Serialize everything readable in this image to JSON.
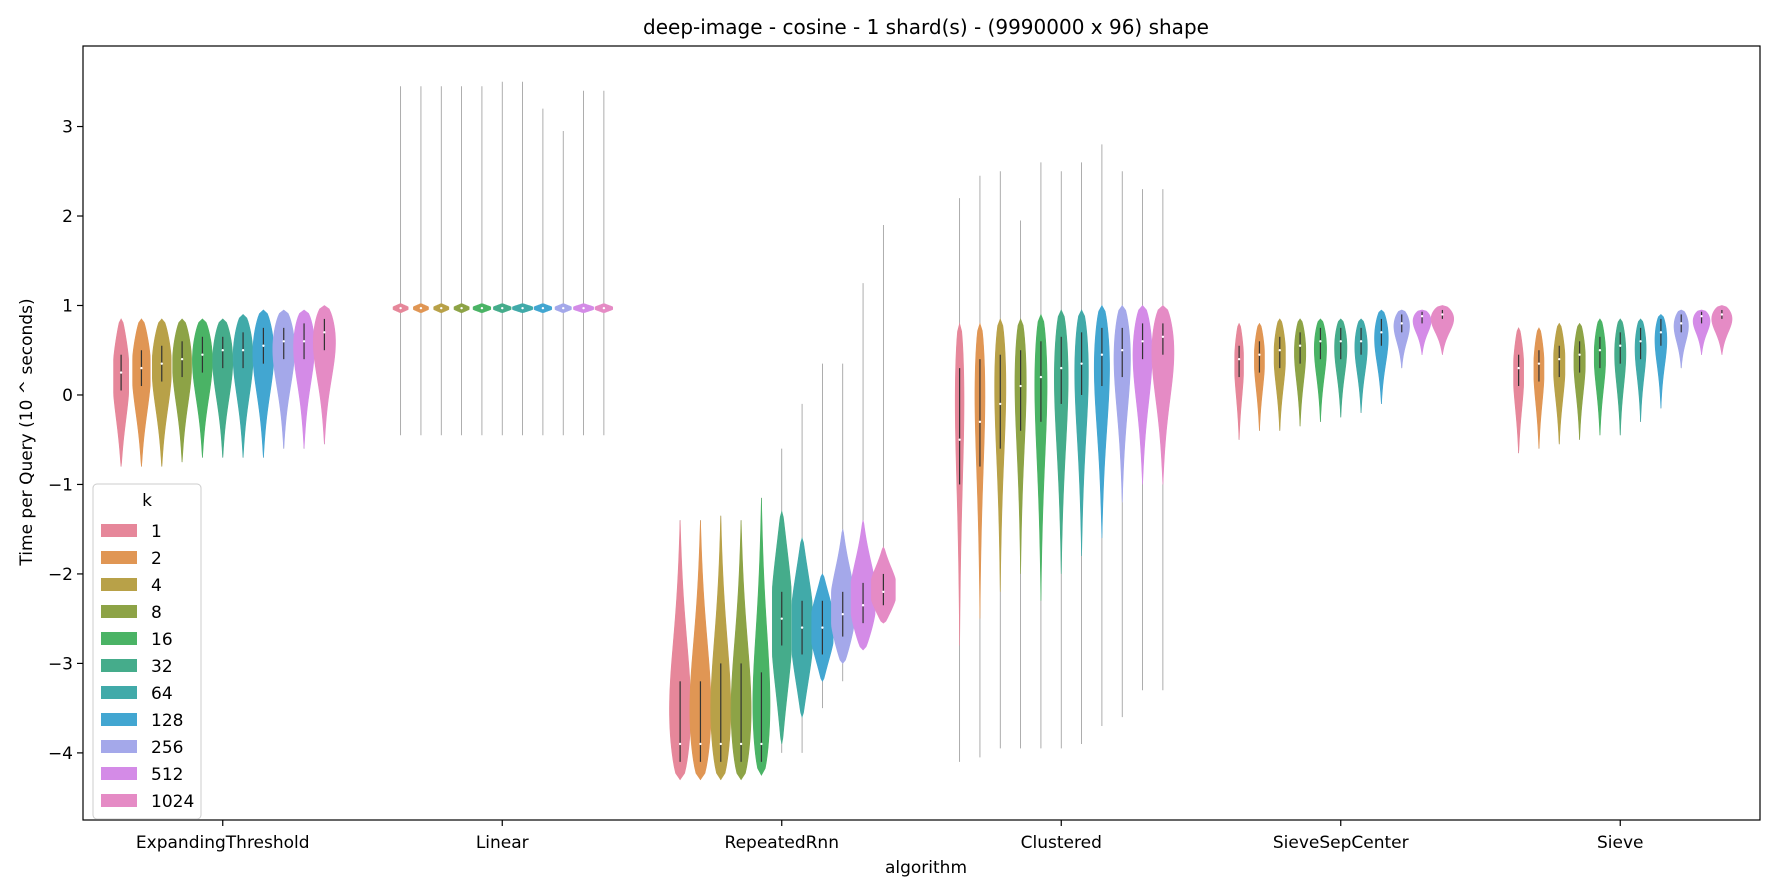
{
  "chart_data": {
    "type": "violin",
    "title": "deep-image - cosine - 1 shard(s) - (9990000 x 96) shape",
    "xlabel": "algorithm",
    "ylabel": "Time per Query (10 ^ seconds)",
    "ylim": [
      -4.75,
      3.9
    ],
    "yticks": [
      3,
      2,
      1,
      0,
      -1,
      -2,
      -3,
      -4
    ],
    "ytick_labels": [
      "3",
      "2",
      "1",
      "0",
      "−1",
      "−2",
      "−3",
      "−4"
    ],
    "grid": false,
    "legend": {
      "title": "k",
      "placement": "lower-left"
    },
    "categories": [
      "ExpandingThreshold",
      "Linear",
      "RepeatedRnn",
      "Clustered",
      "SieveSepCenter",
      "Sieve"
    ],
    "series": [
      {
        "name": "1",
        "color": "#e6879a",
        "values": [
          {
            "min": -0.8,
            "max": 0.85,
            "q1": 0.05,
            "median": 0.25,
            "q3": 0.45,
            "mode": 0.3,
            "width": 0.6
          },
          {
            "min": -0.45,
            "max": 3.45,
            "q1": 0.96,
            "median": 0.97,
            "q3": 0.98,
            "mode": 0.97,
            "width": 0.6,
            "body": [
              0.92,
              1.02
            ]
          },
          {
            "min": -4.3,
            "max": -1.4,
            "q1": -4.1,
            "median": -3.9,
            "q3": -3.2,
            "mode": -3.9,
            "width": 0.9
          },
          {
            "min": -4.1,
            "max": 2.2,
            "q1": -1.0,
            "median": -0.5,
            "q3": 0.3,
            "mode": 0.5,
            "width": 0.4,
            "body": [
              -2.8,
              0.8
            ]
          },
          {
            "min": -0.5,
            "max": 0.8,
            "q1": 0.2,
            "median": 0.4,
            "q3": 0.55,
            "mode": 0.45,
            "width": 0.35
          },
          {
            "min": -0.65,
            "max": 0.75,
            "q1": 0.1,
            "median": 0.3,
            "q3": 0.45,
            "mode": 0.35,
            "width": 0.4
          }
        ]
      },
      {
        "name": "2",
        "color": "#e09654",
        "values": [
          {
            "min": -0.8,
            "max": 0.85,
            "q1": 0.1,
            "median": 0.3,
            "q3": 0.5,
            "mode": 0.4,
            "width": 0.7
          },
          {
            "min": -0.45,
            "max": 3.45,
            "q1": 0.96,
            "median": 0.97,
            "q3": 0.98,
            "mode": 0.97,
            "width": 0.6,
            "body": [
              0.92,
              1.02
            ]
          },
          {
            "min": -4.3,
            "max": -1.4,
            "q1": -4.1,
            "median": -3.9,
            "q3": -3.2,
            "mode": -3.9,
            "width": 0.9
          },
          {
            "min": -4.05,
            "max": 2.45,
            "q1": -0.8,
            "median": -0.3,
            "q3": 0.4,
            "mode": 0.5,
            "width": 0.45,
            "body": [
              -2.5,
              0.8
            ]
          },
          {
            "min": -0.4,
            "max": 0.8,
            "q1": 0.25,
            "median": 0.45,
            "q3": 0.6,
            "mode": 0.5,
            "width": 0.4
          },
          {
            "min": -0.6,
            "max": 0.75,
            "q1": 0.15,
            "median": 0.35,
            "q3": 0.5,
            "mode": 0.4,
            "width": 0.4
          }
        ]
      },
      {
        "name": "4",
        "color": "#b8a148",
        "values": [
          {
            "min": -0.8,
            "max": 0.85,
            "q1": 0.15,
            "median": 0.35,
            "q3": 0.55,
            "mode": 0.45,
            "width": 0.75
          },
          {
            "min": -0.45,
            "max": 3.45,
            "q1": 0.96,
            "median": 0.97,
            "q3": 0.98,
            "mode": 0.97,
            "width": 0.6,
            "body": [
              0.92,
              1.02
            ]
          },
          {
            "min": -4.3,
            "max": -1.35,
            "q1": -4.1,
            "median": -3.9,
            "q3": -3.0,
            "mode": -3.9,
            "width": 0.85
          },
          {
            "min": -3.95,
            "max": 2.5,
            "q1": -0.6,
            "median": -0.1,
            "q3": 0.45,
            "mode": 0.55,
            "width": 0.5,
            "body": [
              -2.2,
              0.85
            ]
          },
          {
            "min": -0.4,
            "max": 0.85,
            "q1": 0.3,
            "median": 0.5,
            "q3": 0.65,
            "mode": 0.55,
            "width": 0.45
          },
          {
            "min": -0.55,
            "max": 0.8,
            "q1": 0.2,
            "median": 0.4,
            "q3": 0.55,
            "mode": 0.45,
            "width": 0.45
          }
        ]
      },
      {
        "name": "8",
        "color": "#8da346",
        "values": [
          {
            "min": -0.75,
            "max": 0.85,
            "q1": 0.2,
            "median": 0.4,
            "q3": 0.6,
            "mode": 0.5,
            "width": 0.75
          },
          {
            "min": -0.45,
            "max": 3.45,
            "q1": 0.96,
            "median": 0.97,
            "q3": 0.98,
            "mode": 0.97,
            "width": 0.6,
            "body": [
              0.92,
              1.02
            ]
          },
          {
            "min": -4.3,
            "max": -1.4,
            "q1": -4.1,
            "median": -3.9,
            "q3": -3.0,
            "mode": -3.9,
            "width": 0.85
          },
          {
            "min": -3.95,
            "max": 1.95,
            "q1": -0.4,
            "median": 0.1,
            "q3": 0.5,
            "mode": 0.55,
            "width": 0.5,
            "body": [
              -2.0,
              0.85
            ]
          },
          {
            "min": -0.35,
            "max": 0.85,
            "q1": 0.35,
            "median": 0.55,
            "q3": 0.7,
            "mode": 0.6,
            "width": 0.45
          },
          {
            "min": -0.5,
            "max": 0.8,
            "q1": 0.25,
            "median": 0.45,
            "q3": 0.6,
            "mode": 0.5,
            "width": 0.45
          }
        ]
      },
      {
        "name": "16",
        "color": "#4ab365",
        "values": [
          {
            "min": -0.7,
            "max": 0.85,
            "q1": 0.25,
            "median": 0.45,
            "q3": 0.65,
            "mode": 0.55,
            "width": 0.8
          },
          {
            "min": -0.45,
            "max": 3.45,
            "q1": 0.96,
            "median": 0.97,
            "q3": 0.98,
            "mode": 0.97,
            "width": 0.7,
            "body": [
              0.92,
              1.02
            ]
          },
          {
            "min": -4.25,
            "max": -1.15,
            "q1": -4.1,
            "median": -3.9,
            "q3": -3.1,
            "mode": -3.9,
            "width": 0.75
          },
          {
            "min": -3.95,
            "max": 2.6,
            "q1": -0.3,
            "median": 0.2,
            "q3": 0.6,
            "mode": 0.6,
            "width": 0.55,
            "body": [
              -2.3,
              0.9
            ]
          },
          {
            "min": -0.3,
            "max": 0.85,
            "q1": 0.4,
            "median": 0.6,
            "q3": 0.75,
            "mode": 0.65,
            "width": 0.5
          },
          {
            "min": -0.45,
            "max": 0.85,
            "q1": 0.3,
            "median": 0.5,
            "q3": 0.65,
            "mode": 0.55,
            "width": 0.45
          }
        ]
      },
      {
        "name": "32",
        "color": "#45ac8b",
        "values": [
          {
            "min": -0.7,
            "max": 0.85,
            "q1": 0.3,
            "median": 0.5,
            "q3": 0.65,
            "mode": 0.55,
            "width": 0.8
          },
          {
            "min": -0.45,
            "max": 3.5,
            "q1": 0.96,
            "median": 0.97,
            "q3": 0.98,
            "mode": 0.97,
            "width": 0.7,
            "body": [
              0.92,
              1.02
            ]
          },
          {
            "min": -4.0,
            "max": -0.6,
            "q1": -2.8,
            "median": -2.5,
            "q3": -2.2,
            "mode": -2.5,
            "width": 0.75,
            "body": [
              -3.9,
              -1.3
            ]
          },
          {
            "min": -3.95,
            "max": 2.5,
            "q1": -0.1,
            "median": 0.3,
            "q3": 0.65,
            "mode": 0.6,
            "width": 0.6,
            "body": [
              -2.0,
              0.95
            ]
          },
          {
            "min": -0.25,
            "max": 0.85,
            "q1": 0.4,
            "median": 0.6,
            "q3": 0.75,
            "mode": 0.65,
            "width": 0.5
          },
          {
            "min": -0.45,
            "max": 0.85,
            "q1": 0.35,
            "median": 0.55,
            "q3": 0.7,
            "mode": 0.6,
            "width": 0.45
          }
        ]
      },
      {
        "name": "64",
        "color": "#41aaa9",
        "values": [
          {
            "min": -0.7,
            "max": 0.9,
            "q1": 0.3,
            "median": 0.5,
            "q3": 0.7,
            "mode": 0.6,
            "width": 0.8
          },
          {
            "min": -0.45,
            "max": 3.5,
            "q1": 0.96,
            "median": 0.97,
            "q3": 0.98,
            "mode": 0.97,
            "width": 0.8,
            "body": [
              0.92,
              1.02
            ]
          },
          {
            "min": -4.0,
            "max": -0.1,
            "q1": -2.9,
            "median": -2.6,
            "q3": -2.3,
            "mode": -2.6,
            "width": 0.8,
            "body": [
              -3.6,
              -1.6
            ]
          },
          {
            "min": -3.9,
            "max": 2.6,
            "q1": 0.0,
            "median": 0.35,
            "q3": 0.7,
            "mode": 0.65,
            "width": 0.6,
            "body": [
              -1.8,
              0.95
            ]
          },
          {
            "min": -0.2,
            "max": 0.85,
            "q1": 0.45,
            "median": 0.6,
            "q3": 0.75,
            "mode": 0.65,
            "width": 0.5
          },
          {
            "min": -0.3,
            "max": 0.85,
            "q1": 0.4,
            "median": 0.6,
            "q3": 0.75,
            "mode": 0.65,
            "width": 0.45
          }
        ]
      },
      {
        "name": "128",
        "color": "#42a6d1",
        "values": [
          {
            "min": -0.7,
            "max": 0.95,
            "q1": 0.35,
            "median": 0.55,
            "q3": 0.75,
            "mode": 0.65,
            "width": 0.85
          },
          {
            "min": -0.45,
            "max": 3.2,
            "q1": 0.96,
            "median": 0.97,
            "q3": 0.98,
            "mode": 0.97,
            "width": 0.7,
            "body": [
              0.92,
              1.02
            ]
          },
          {
            "min": -3.5,
            "max": 0.35,
            "q1": -2.9,
            "median": -2.6,
            "q3": -2.3,
            "mode": -2.6,
            "width": 0.85,
            "body": [
              -3.2,
              -2.0
            ]
          },
          {
            "min": -3.7,
            "max": 2.8,
            "q1": 0.1,
            "median": 0.45,
            "q3": 0.75,
            "mode": 0.65,
            "width": 0.65,
            "body": [
              -1.6,
              1.0
            ]
          },
          {
            "min": -0.1,
            "max": 0.95,
            "q1": 0.55,
            "median": 0.7,
            "q3": 0.85,
            "mode": 0.75,
            "width": 0.55
          },
          {
            "min": -0.15,
            "max": 0.9,
            "q1": 0.55,
            "median": 0.7,
            "q3": 0.85,
            "mode": 0.75,
            "width": 0.5
          }
        ]
      },
      {
        "name": "256",
        "color": "#a4a8ea",
        "values": [
          {
            "min": -0.6,
            "max": 0.95,
            "q1": 0.4,
            "median": 0.6,
            "q3": 0.75,
            "mode": 0.7,
            "width": 0.9
          },
          {
            "min": -0.45,
            "max": 2.95,
            "q1": 0.96,
            "median": 0.97,
            "q3": 0.98,
            "mode": 0.97,
            "width": 0.65,
            "body": [
              0.92,
              1.02
            ]
          },
          {
            "min": -3.2,
            "max": 0.35,
            "q1": -2.7,
            "median": -2.45,
            "q3": -2.2,
            "mode": -2.45,
            "width": 0.9,
            "body": [
              -3.0,
              -1.5
            ]
          },
          {
            "min": -3.6,
            "max": 2.5,
            "q1": 0.2,
            "median": 0.5,
            "q3": 0.75,
            "mode": 0.7,
            "width": 0.7,
            "body": [
              -1.2,
              1.0
            ]
          },
          {
            "min": 0.3,
            "max": 0.95,
            "q1": 0.7,
            "median": 0.8,
            "q3": 0.9,
            "mode": 0.85,
            "width": 0.65
          },
          {
            "min": 0.3,
            "max": 0.95,
            "q1": 0.7,
            "median": 0.8,
            "q3": 0.9,
            "mode": 0.85,
            "width": 0.6
          }
        ]
      },
      {
        "name": "512",
        "color": "#d48be7",
        "values": [
          {
            "min": -0.6,
            "max": 0.95,
            "q1": 0.4,
            "median": 0.6,
            "q3": 0.8,
            "mode": 0.75,
            "width": 0.9
          },
          {
            "min": -0.45,
            "max": 3.4,
            "q1": 0.96,
            "median": 0.97,
            "q3": 0.98,
            "mode": 0.97,
            "width": 0.8,
            "body": [
              0.92,
              1.02
            ]
          },
          {
            "min": -2.85,
            "max": 1.25,
            "q1": -2.55,
            "median": -2.35,
            "q3": -2.1,
            "mode": -2.35,
            "width": 0.95,
            "body": [
              -2.85,
              -1.4
            ]
          },
          {
            "min": -3.3,
            "max": 2.3,
            "q1": 0.4,
            "median": 0.6,
            "q3": 0.8,
            "mode": 0.7,
            "width": 0.8,
            "body": [
              -1.0,
              1.0
            ]
          },
          {
            "min": 0.45,
            "max": 0.95,
            "q1": 0.8,
            "median": 0.88,
            "q3": 0.93,
            "mode": 0.9,
            "width": 0.8
          },
          {
            "min": 0.45,
            "max": 0.95,
            "q1": 0.8,
            "median": 0.88,
            "q3": 0.93,
            "mode": 0.9,
            "width": 0.75
          }
        ]
      },
      {
        "name": "1024",
        "color": "#e58bc5",
        "values": [
          {
            "min": -0.55,
            "max": 1.0,
            "q1": 0.5,
            "median": 0.7,
            "q3": 0.85,
            "mode": 0.8,
            "width": 0.95
          },
          {
            "min": -0.45,
            "max": 3.4,
            "q1": 0.96,
            "median": 0.97,
            "q3": 0.98,
            "mode": 0.97,
            "width": 0.7,
            "body": [
              0.92,
              1.02
            ]
          },
          {
            "min": -2.55,
            "max": 1.9,
            "q1": -2.35,
            "median": -2.2,
            "q3": -2.0,
            "mode": -2.2,
            "width": 0.95,
            "body": [
              -2.55,
              -1.7
            ]
          },
          {
            "min": -3.3,
            "max": 2.3,
            "q1": 0.45,
            "median": 0.65,
            "q3": 0.8,
            "mode": 0.75,
            "width": 0.95,
            "body": [
              -1.0,
              1.0
            ]
          },
          {
            "min": 0.45,
            "max": 1.0,
            "q1": 0.85,
            "median": 0.9,
            "q3": 0.95,
            "mode": 0.92,
            "width": 0.95
          },
          {
            "min": 0.45,
            "max": 1.0,
            "q1": 0.85,
            "median": 0.9,
            "q3": 0.95,
            "mode": 0.92,
            "width": 0.85
          }
        ]
      }
    ]
  }
}
